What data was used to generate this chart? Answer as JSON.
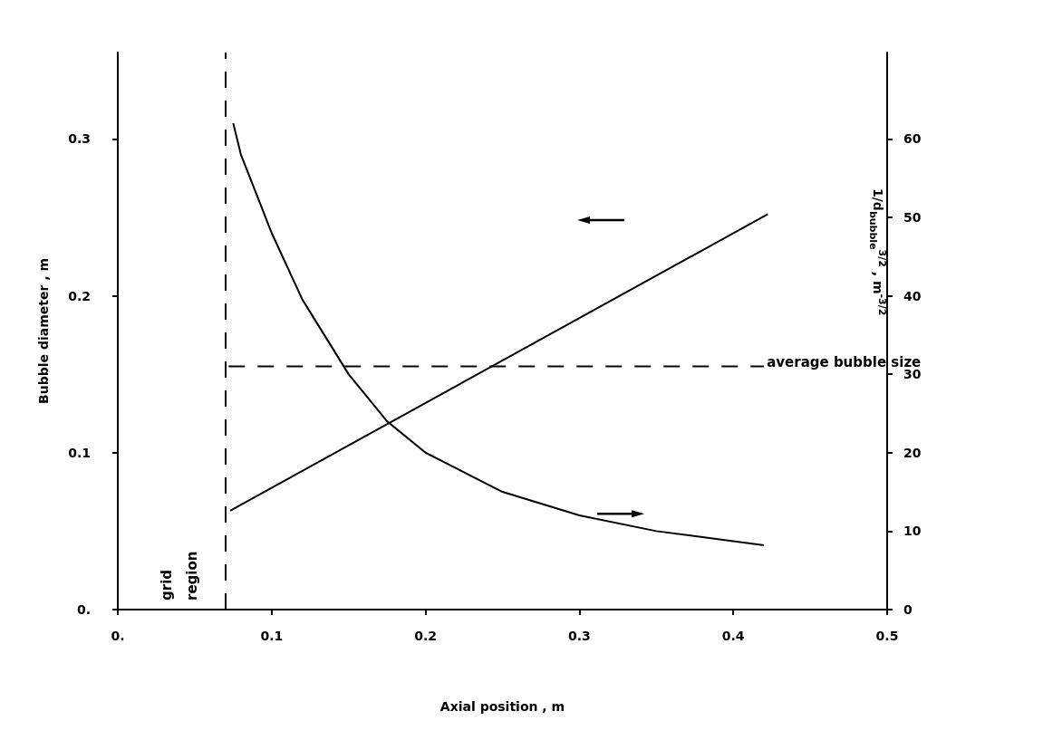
{
  "chart_data": {
    "type": "line",
    "xlabel": "Axial position , m",
    "ylabel": "Bubble diameter , m",
    "y2label": "1/d$_{bubble}$$^{3/2}$ , m$^{-3/2}$",
    "xlim": [
      0,
      0.5
    ],
    "xticks": [
      {
        "value": 0,
        "label": "0."
      },
      0.1,
      0.2,
      0.3,
      0.4,
      0.5
    ],
    "ylim": [
      0,
      0.355
    ],
    "yticks": [
      {
        "value": 0,
        "label": "0."
      },
      0.1,
      0.2,
      0.3
    ],
    "y2lim": [
      0,
      71
    ],
    "y2ticks": [
      0,
      10,
      20,
      30,
      40,
      50,
      60
    ],
    "grid": false,
    "legend": false,
    "marker": "none",
    "series": [
      {
        "color": "#000000",
        "line_style": "solid",
        "x": [
          0.073,
          0.4225
        ],
        "values": [
          0.063,
          0.252
        ]
      },
      {
        "color": "#000000",
        "line_style": "solid",
        "axis": "y2",
        "x": [
          0.075,
          0.08,
          0.09,
          0.1,
          0.12,
          0.15,
          0.175,
          0.2,
          0.25,
          0.3,
          0.35,
          0.42
        ],
        "values": [
          62,
          58,
          53,
          48,
          39.5,
          30,
          24,
          20,
          15,
          12,
          10,
          8.2
        ]
      },
      {
        "name": "average bubble size",
        "color": "#000000",
        "line_style": "dashed",
        "x": [
          0.072,
          0.42
        ],
        "values": [
          0.155,
          0.155
        ]
      }
    ],
    "ref_lines": [
      {
        "axis": "x",
        "value": 0.072,
        "label": "grid region",
        "color": "#000000",
        "line_style": "dashed"
      }
    ]
  }
}
